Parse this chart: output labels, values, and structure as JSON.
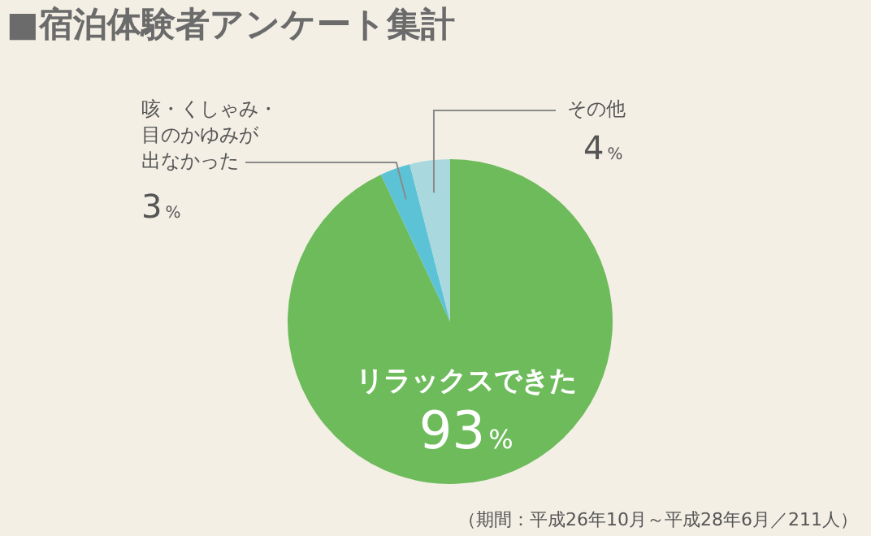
{
  "chart_data": {
    "type": "pie",
    "title": "■宿泊体験者アンケート集計",
    "categories": [
      "リラックスできた",
      "咳・くしゃみ・目のかゆみが出なかった",
      "その他"
    ],
    "values": [
      93,
      3,
      4
    ],
    "value_labels": [
      "93%",
      "3%",
      "4%"
    ],
    "colors": [
      "#6dbb5a",
      "#5cc3d6",
      "#a9d9df"
    ],
    "legend": false,
    "annotations": [
      "（期間：平成26年10月～平成28年6月／211人）"
    ]
  }
}
